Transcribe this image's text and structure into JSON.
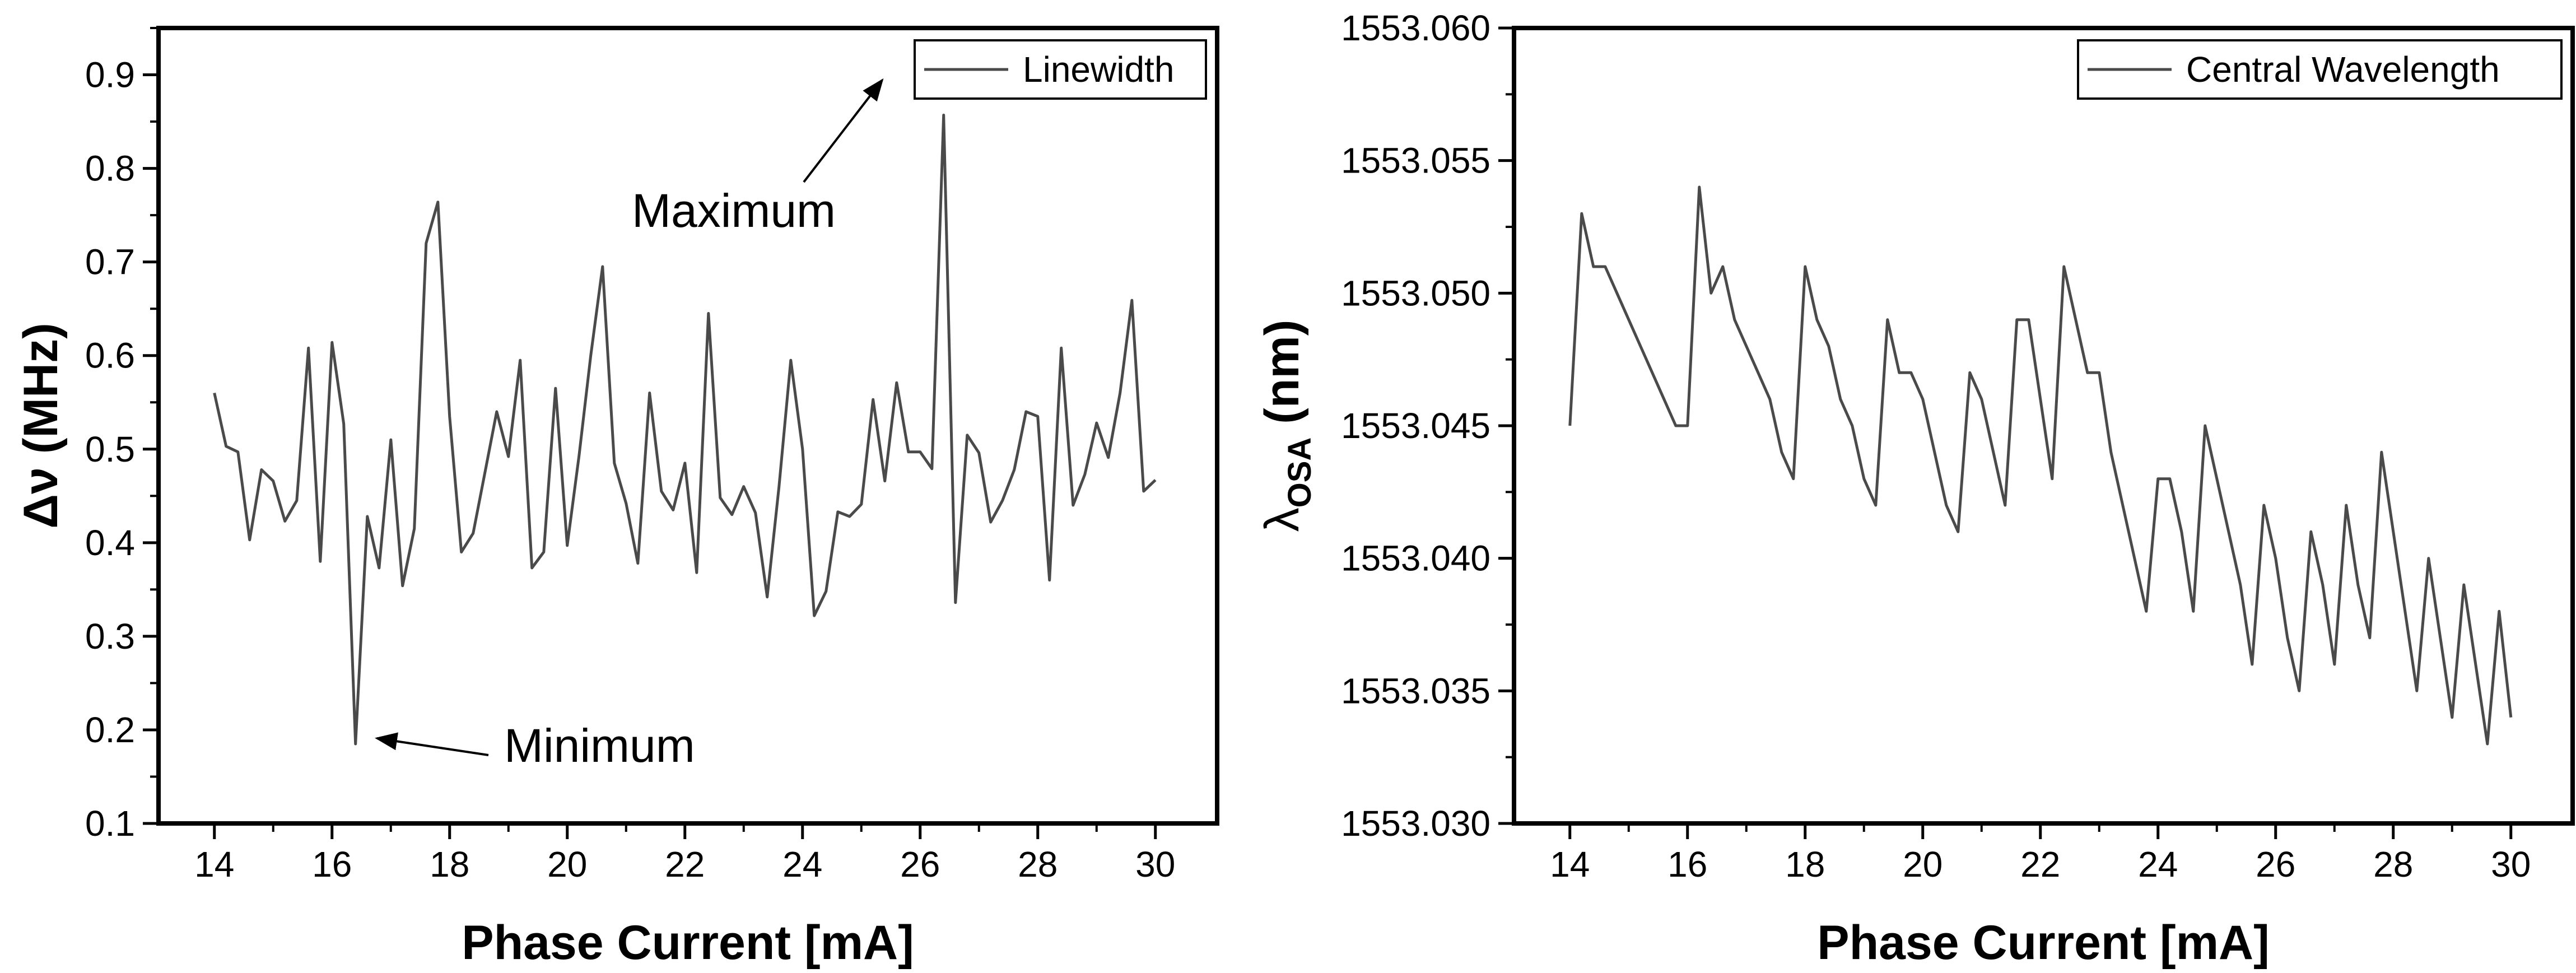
{
  "chart_data": [
    {
      "type": "line",
      "xlabel": "Phase Current [mA]",
      "ylabel": "Δν (MHz)",
      "xlim": [
        13.05,
        31.05
      ],
      "ylim": [
        0.1,
        0.95
      ],
      "xticks": [
        14,
        16,
        18,
        20,
        22,
        24,
        26,
        28,
        30
      ],
      "yticks": [
        0.1,
        0.2,
        0.3,
        0.4,
        0.5,
        0.6,
        0.7,
        0.8,
        0.9
      ],
      "ytick_decimals": 1,
      "legend_position": "top-right",
      "line_color": "#4a4a4a",
      "series": [
        {
          "name": "Linewidth",
          "x": [
            14.0,
            14.2,
            14.4,
            14.6,
            14.8,
            15.0,
            15.2,
            15.4,
            15.6,
            15.8,
            16.0,
            16.2,
            16.4,
            16.6,
            16.8,
            17.0,
            17.2,
            17.4,
            17.6,
            17.8,
            18.0,
            18.2,
            18.4,
            18.6,
            18.8,
            19.0,
            19.2,
            19.4,
            19.6,
            19.8,
            20.0,
            20.2,
            20.4,
            20.6,
            20.8,
            21.0,
            21.2,
            21.4,
            21.6,
            21.8,
            22.0,
            22.2,
            22.4,
            22.6,
            22.8,
            23.0,
            23.2,
            23.4,
            23.6,
            23.8,
            24.0,
            24.2,
            24.4,
            24.6,
            24.8,
            25.0,
            25.2,
            25.4,
            25.6,
            25.8,
            26.0,
            26.2,
            26.4,
            26.6,
            26.8,
            27.0,
            27.2,
            27.4,
            27.6,
            27.8,
            28.0,
            28.2,
            28.4,
            28.6,
            28.8,
            29.0,
            29.2,
            29.4,
            29.6,
            29.8,
            30.0
          ],
          "y": [
            0.56,
            0.503,
            0.497,
            0.403,
            0.478,
            0.466,
            0.423,
            0.445,
            0.608,
            0.38,
            0.614,
            0.527,
            0.185,
            0.428,
            0.373,
            0.51,
            0.354,
            0.415,
            0.72,
            0.764,
            0.535,
            0.39,
            0.41,
            0.475,
            0.54,
            0.492,
            0.595,
            0.373,
            0.39,
            0.565,
            0.397,
            0.493,
            0.6,
            0.695,
            0.485,
            0.442,
            0.378,
            0.56,
            0.455,
            0.435,
            0.485,
            0.368,
            0.645,
            0.448,
            0.43,
            0.46,
            0.432,
            0.342,
            0.46,
            0.595,
            0.5,
            0.322,
            0.348,
            0.433,
            0.428,
            0.441,
            0.553,
            0.466,
            0.571,
            0.497,
            0.497,
            0.479,
            0.857,
            0.336,
            0.515,
            0.496,
            0.422,
            0.445,
            0.478,
            0.54,
            0.535,
            0.36,
            0.608,
            0.44,
            0.473,
            0.528,
            0.491,
            0.56,
            0.659,
            0.455,
            0.467
          ]
        }
      ],
      "annotations": [
        {
          "text": "Maximum",
          "x": 26.4,
          "y": 0.857
        },
        {
          "text": "Minimum",
          "x": 16.4,
          "y": 0.185
        }
      ]
    },
    {
      "type": "line",
      "xlabel": "Phase Current [mA]",
      "ylabel_main": "λ",
      "ylabel_sub": "OSA",
      "ylabel_unit": " (nm)",
      "xlim": [
        13.05,
        31.05
      ],
      "ylim": [
        1553.03,
        1553.06
      ],
      "xticks": [
        14,
        16,
        18,
        20,
        22,
        24,
        26,
        28,
        30
      ],
      "yticks": [
        1553.03,
        1553.035,
        1553.04,
        1553.045,
        1553.05,
        1553.055,
        1553.06
      ],
      "ytick_decimals": 3,
      "legend_position": "top-right",
      "line_color": "#4a4a4a",
      "series": [
        {
          "name": "Central Wavelength",
          "x": [
            14.0,
            14.2,
            14.4,
            14.6,
            14.8,
            15.0,
            15.2,
            15.4,
            15.6,
            15.8,
            16.0,
            16.2,
            16.4,
            16.6,
            16.8,
            17.0,
            17.2,
            17.4,
            17.6,
            17.8,
            18.0,
            18.2,
            18.4,
            18.6,
            18.8,
            19.0,
            19.2,
            19.4,
            19.6,
            19.8,
            20.0,
            20.2,
            20.4,
            20.6,
            20.8,
            21.0,
            21.2,
            21.4,
            21.6,
            21.8,
            22.0,
            22.2,
            22.4,
            22.6,
            22.8,
            23.0,
            23.2,
            23.4,
            23.6,
            23.8,
            24.0,
            24.2,
            24.4,
            24.6,
            24.8,
            25.0,
            25.2,
            25.4,
            25.6,
            25.8,
            26.0,
            26.2,
            26.4,
            26.6,
            26.8,
            27.0,
            27.2,
            27.4,
            27.6,
            27.8,
            28.0,
            28.2,
            28.4,
            28.6,
            28.8,
            29.0,
            29.2,
            29.4,
            29.6,
            29.8,
            30.0
          ],
          "y": [
            1553.045,
            1553.053,
            1553.051,
            1553.051,
            1553.05,
            1553.049,
            1553.048,
            1553.047,
            1553.046,
            1553.045,
            1553.045,
            1553.054,
            1553.05,
            1553.051,
            1553.049,
            1553.048,
            1553.047,
            1553.046,
            1553.044,
            1553.043,
            1553.051,
            1553.049,
            1553.048,
            1553.046,
            1553.045,
            1553.043,
            1553.042,
            1553.049,
            1553.047,
            1553.047,
            1553.046,
            1553.044,
            1553.042,
            1553.041,
            1553.047,
            1553.046,
            1553.044,
            1553.042,
            1553.049,
            1553.049,
            1553.046,
            1553.043,
            1553.051,
            1553.049,
            1553.047,
            1553.047,
            1553.044,
            1553.042,
            1553.04,
            1553.038,
            1553.043,
            1553.043,
            1553.041,
            1553.038,
            1553.045,
            1553.043,
            1553.041,
            1553.039,
            1553.036,
            1553.042,
            1553.04,
            1553.037,
            1553.035,
            1553.041,
            1553.039,
            1553.036,
            1553.042,
            1553.039,
            1553.037,
            1553.044,
            1553.041,
            1553.038,
            1553.035,
            1553.04,
            1553.037,
            1553.034,
            1553.039,
            1553.036,
            1553.033,
            1553.038,
            1553.034
          ]
        }
      ]
    }
  ]
}
